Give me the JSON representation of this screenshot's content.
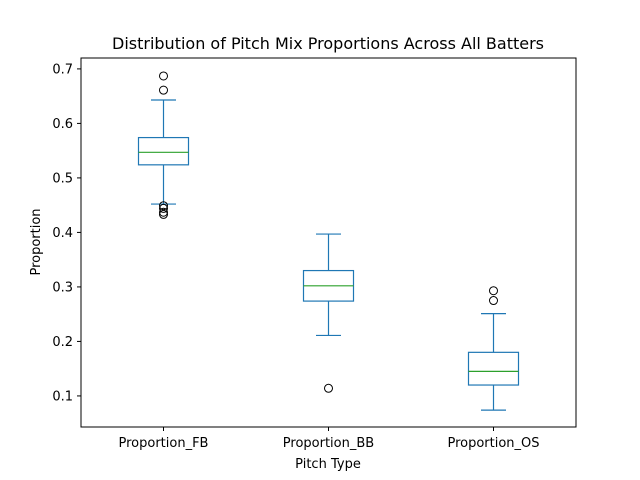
{
  "chart_data": {
    "type": "box",
    "title": "Distribution of Pitch Mix Proportions Across All Batters",
    "xlabel": "Pitch Type",
    "ylabel": "Proportion",
    "ylim": [
      0.043,
      0.72
    ],
    "y_ticks": [
      "0.1",
      "0.2",
      "0.3",
      "0.4",
      "0.5",
      "0.6",
      "0.7"
    ],
    "y_tick_values": [
      0.1,
      0.2,
      0.3,
      0.4,
      0.5,
      0.6,
      0.7
    ],
    "grid": false,
    "legend": "none",
    "categories": [
      "Proportion_FB",
      "Proportion_BB",
      "Proportion_OS"
    ],
    "boxes": [
      {
        "name": "Proportion_FB",
        "whisker_low": 0.452,
        "q1": 0.524,
        "median": 0.547,
        "q3": 0.574,
        "whisker_high": 0.643,
        "outliers": [
          0.687,
          0.661,
          0.449,
          0.444,
          0.437,
          0.433
        ]
      },
      {
        "name": "Proportion_BB",
        "whisker_low": 0.211,
        "q1": 0.274,
        "median": 0.302,
        "q3": 0.33,
        "whisker_high": 0.397,
        "outliers": [
          0.114
        ]
      },
      {
        "name": "Proportion_OS",
        "whisker_low": 0.074,
        "q1": 0.12,
        "median": 0.145,
        "q3": 0.18,
        "whisker_high": 0.251,
        "outliers": [
          0.293,
          0.275
        ]
      }
    ],
    "colors": {
      "box": "#1f77b4",
      "median": "#2ca02c",
      "outlier": "#000000",
      "axes": "#000000"
    }
  }
}
